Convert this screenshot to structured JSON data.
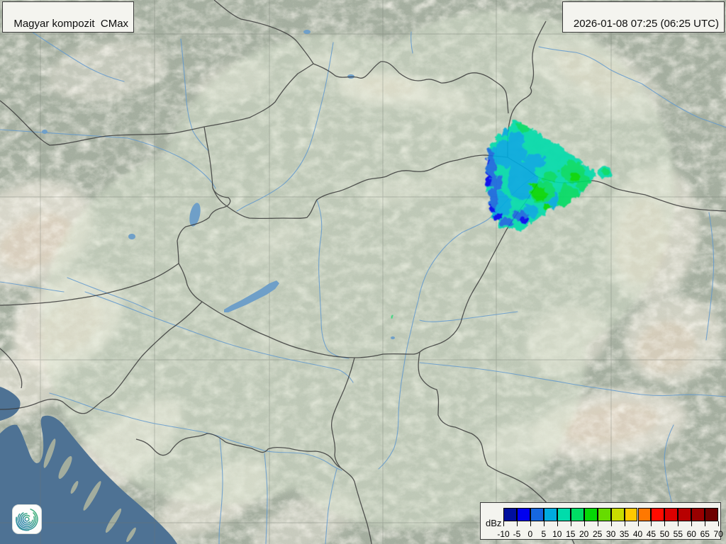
{
  "header": {
    "title": "Magyar kompozit  CMax",
    "timestamp": "2026-01-08 07:25 (06:25 UTC)"
  },
  "legend": {
    "unit_label": "dBz",
    "tick_labels": [
      "-10",
      "-5",
      "0",
      "5",
      "10",
      "15",
      "20",
      "25",
      "30",
      "35",
      "40",
      "45",
      "50",
      "55",
      "60",
      "65",
      "70"
    ],
    "colors": [
      "#000f9e",
      "#0000ef",
      "#1667e0",
      "#00aadf",
      "#00dcab",
      "#00dc64",
      "#06d806",
      "#66dc00",
      "#c8dc00",
      "#ffc800",
      "#ff7800",
      "#ff0c00",
      "#dc0000",
      "#b80000",
      "#980000",
      "#6e0000"
    ]
  },
  "logo": {
    "name": "hungaromet-swirl-logo"
  },
  "colors": {
    "land": "#a3ad9e",
    "coverage": "#d8e2ce",
    "sea": "#4e7294",
    "border": "#3a3a3a",
    "river": "#649ace",
    "lake": "#6f9fc8",
    "grid": "#70766e",
    "mountain": "#ece7db",
    "mountain_shadow": "#d9c6ae",
    "box_bg": "#f4f4ef",
    "box_border": "#3b3b3b",
    "text": "#0d0d0d",
    "logo_green": "#4cb97c",
    "logo_blue": "#2e7fb2"
  }
}
